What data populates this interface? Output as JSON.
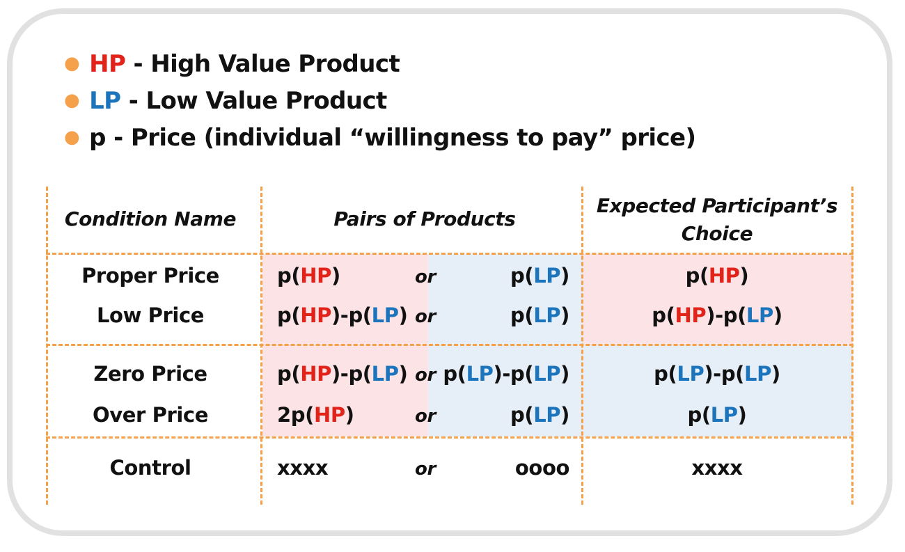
{
  "legend": [
    {
      "abbr": "HP",
      "abbr_class": "hp",
      "text": " - High Value Product"
    },
    {
      "abbr": "LP",
      "abbr_class": "lp",
      "text": " - Low Value Product"
    },
    {
      "abbr": "p",
      "abbr_class": "",
      "text": " - Price (individual “willingness to pay” price)"
    }
  ],
  "table": {
    "headers": {
      "condition": "Condition Name",
      "pairs": "Pairs of Products",
      "choice_line1": "Expected Participant’s",
      "choice_line2": "Choice"
    },
    "rows": [
      {
        "condition": "Proper Price",
        "left": [
          [
            "p(",
            ""
          ],
          [
            "HP",
            "hp"
          ],
          [
            ")",
            ""
          ]
        ],
        "or": "or",
        "right": [
          [
            "p(",
            ""
          ],
          [
            "LP",
            "lp"
          ],
          [
            ")",
            ""
          ]
        ],
        "choice": [
          [
            "p(",
            ""
          ],
          [
            "HP",
            "hp"
          ],
          [
            ")",
            ""
          ]
        ]
      },
      {
        "condition": "Low Price",
        "left": [
          [
            "p(",
            ""
          ],
          [
            "HP",
            "hp"
          ],
          [
            ")-p(",
            ""
          ],
          [
            "LP",
            "lp"
          ],
          [
            ")",
            ""
          ]
        ],
        "or": "or",
        "right": [
          [
            "p(",
            ""
          ],
          [
            "LP",
            "lp"
          ],
          [
            ")",
            ""
          ]
        ],
        "choice": [
          [
            "p(",
            ""
          ],
          [
            "HP",
            "hp"
          ],
          [
            ")-p(",
            ""
          ],
          [
            "LP",
            "lp"
          ],
          [
            ")",
            ""
          ]
        ]
      },
      {
        "condition": "Zero Price",
        "left": [
          [
            "p(",
            ""
          ],
          [
            "HP",
            "hp"
          ],
          [
            ")-p(",
            ""
          ],
          [
            "LP",
            "lp"
          ],
          [
            ")",
            ""
          ]
        ],
        "or": "or",
        "right": [
          [
            "p(",
            ""
          ],
          [
            "LP",
            "lp"
          ],
          [
            ")-p(",
            ""
          ],
          [
            "LP",
            "lp"
          ],
          [
            ")",
            ""
          ]
        ],
        "choice": [
          [
            "p(",
            ""
          ],
          [
            "LP",
            "lp"
          ],
          [
            ")-p(",
            ""
          ],
          [
            "LP",
            "lp"
          ],
          [
            ")",
            ""
          ]
        ]
      },
      {
        "condition": "Over Price",
        "left": [
          [
            "2p(",
            ""
          ],
          [
            "HP",
            "hp"
          ],
          [
            ")",
            ""
          ]
        ],
        "or": "or",
        "right": [
          [
            "p(",
            ""
          ],
          [
            "LP",
            "lp"
          ],
          [
            ")",
            ""
          ]
        ],
        "choice": [
          [
            "p(",
            ""
          ],
          [
            "LP",
            "lp"
          ],
          [
            ")",
            ""
          ]
        ]
      },
      {
        "condition": "Control",
        "left": [
          [
            "xxxx",
            ""
          ]
        ],
        "or": "or",
        "right": [
          [
            "oooo",
            ""
          ]
        ],
        "choice": [
          [
            "xxxx",
            ""
          ]
        ]
      }
    ]
  },
  "colors": {
    "hp": "#e2231a",
    "lp": "#1c75bc",
    "hp_bg": "#fce4e6",
    "lp_bg": "#e6eff7",
    "dash": "#f5a04b",
    "frame": "#e1e1e1"
  }
}
